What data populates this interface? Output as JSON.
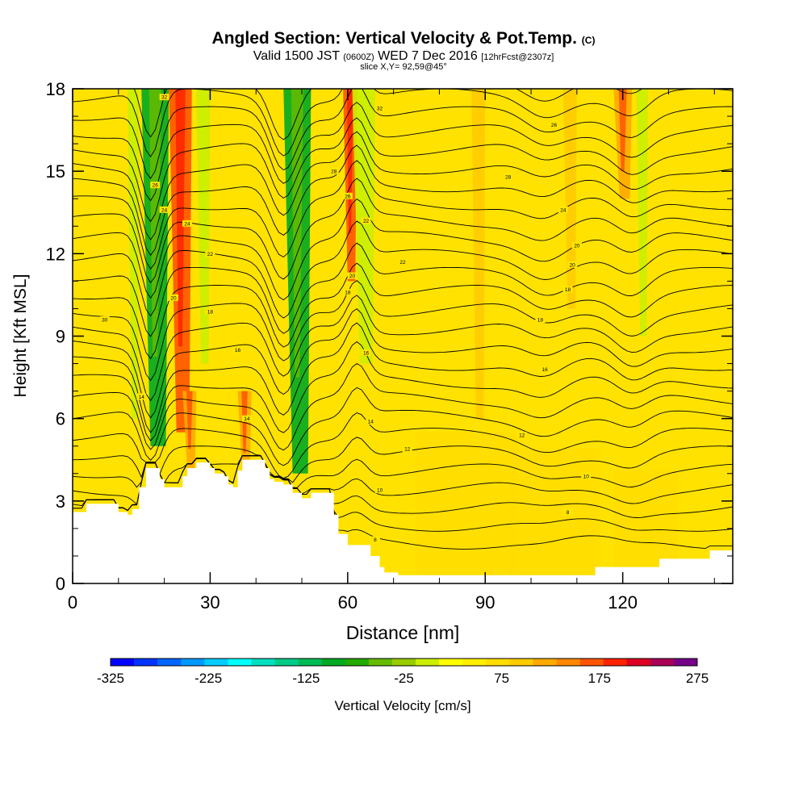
{
  "title": {
    "main": "Angled Section: Vertical Velocity & Pot.Temp.",
    "copyright": "(C)",
    "valid_prefix": "Valid 1500 JST",
    "valid_utc": "(0600Z)",
    "valid_date": "WED 7 Dec 2016",
    "forecast": "[12hrFcst@2307z]",
    "slice": "slice X,Y= 92,59@45°"
  },
  "chart_data": {
    "type": "heatmap",
    "xlabel": "Distance [nm]",
    "ylabel": "Height [Kft MSL]",
    "xlim": [
      0,
      144
    ],
    "ylim": [
      0,
      18
    ],
    "x_ticks": [
      0,
      30,
      60,
      90,
      120
    ],
    "y_ticks": [
      0,
      3,
      6,
      9,
      12,
      15,
      18
    ],
    "colorbar": {
      "label": "Vertical Velocity [cm/s]",
      "min": -325,
      "max": 275,
      "step": 25,
      "tick_labels": [
        "-325",
        "-225",
        "-125",
        "-25",
        "75",
        "175",
        "275"
      ],
      "colors": [
        "#0000ff",
        "#0033ff",
        "#0066ff",
        "#0099ff",
        "#00ccff",
        "#00ffff",
        "#00e0c0",
        "#00cc88",
        "#00bb55",
        "#00aa22",
        "#22aa00",
        "#66bb00",
        "#99cc00",
        "#ccee00",
        "#ffff00",
        "#ffee00",
        "#ffdd00",
        "#ffcc00",
        "#ffaa00",
        "#ff8800",
        "#ff5500",
        "#ff2200",
        "#dd0022",
        "#aa0055",
        "#770088"
      ]
    },
    "updraft_columns_x": [
      22,
      60,
      120
    ],
    "downdraft_columns_x": [
      15,
      46,
      64,
      123
    ],
    "terrain": [
      [
        0,
        2.6
      ],
      [
        3,
        2.9
      ],
      [
        10,
        2.6
      ],
      [
        12,
        2.5
      ],
      [
        13,
        2.7
      ],
      [
        14,
        2.7
      ],
      [
        14.5,
        3.5
      ],
      [
        16,
        4.2
      ],
      [
        19,
        3.8
      ],
      [
        20,
        3.5
      ],
      [
        23,
        3.5
      ],
      [
        24,
        3.9
      ],
      [
        25,
        4.2
      ],
      [
        27,
        4.4
      ],
      [
        30,
        4.2
      ],
      [
        31,
        4.0
      ],
      [
        33,
        3.9
      ],
      [
        34,
        3.6
      ],
      [
        35,
        3.5
      ],
      [
        36,
        4.1
      ],
      [
        37,
        4.5
      ],
      [
        41,
        4.5
      ],
      [
        42,
        4.2
      ],
      [
        43,
        3.8
      ],
      [
        44,
        3.7
      ],
      [
        46,
        3.6
      ],
      [
        48,
        3.3
      ],
      [
        50,
        3.1
      ],
      [
        52,
        3.3
      ],
      [
        56,
        3.3
      ],
      [
        57,
        2.5
      ],
      [
        58,
        1.8
      ],
      [
        60,
        1.4
      ],
      [
        64,
        1.4
      ],
      [
        65,
        1.0
      ],
      [
        67,
        0.6
      ],
      [
        68,
        0.4
      ],
      [
        71,
        0.3
      ],
      [
        113,
        0.3
      ],
      [
        114,
        0.6
      ],
      [
        127,
        0.6
      ],
      [
        128,
        0.9
      ],
      [
        138,
        0.9
      ],
      [
        139,
        1.2
      ],
      [
        144,
        1.2
      ]
    ],
    "theta_contour_labels": [
      {
        "x": 7,
        "y": 9.6,
        "text": "30"
      },
      {
        "x": 20,
        "y": 17.7,
        "text": "32"
      },
      {
        "x": 67,
        "y": 17.3,
        "text": "32"
      },
      {
        "x": 105,
        "y": 16.7,
        "text": "26"
      },
      {
        "x": 18,
        "y": 14.5,
        "text": "26"
      },
      {
        "x": 57,
        "y": 15.0,
        "text": "28"
      },
      {
        "x": 60,
        "y": 14.1,
        "text": "26"
      },
      {
        "x": 95,
        "y": 14.8,
        "text": "28"
      },
      {
        "x": 20,
        "y": 13.6,
        "text": "24"
      },
      {
        "x": 25,
        "y": 13.1,
        "text": "24"
      },
      {
        "x": 107,
        "y": 13.6,
        "text": "24"
      },
      {
        "x": 64,
        "y": 13.2,
        "text": "22"
      },
      {
        "x": 30,
        "y": 12.0,
        "text": "22"
      },
      {
        "x": 72,
        "y": 11.7,
        "text": "22"
      },
      {
        "x": 110,
        "y": 12.3,
        "text": "20"
      },
      {
        "x": 61,
        "y": 11.2,
        "text": "20"
      },
      {
        "x": 109,
        "y": 11.6,
        "text": "20"
      },
      {
        "x": 22,
        "y": 10.4,
        "text": "20"
      },
      {
        "x": 108,
        "y": 10.7,
        "text": "18"
      },
      {
        "x": 60,
        "y": 10.6,
        "text": "18"
      },
      {
        "x": 30,
        "y": 9.9,
        "text": "18"
      },
      {
        "x": 102,
        "y": 9.6,
        "text": "18"
      },
      {
        "x": 36,
        "y": 8.5,
        "text": "16"
      },
      {
        "x": 64,
        "y": 8.4,
        "text": "16"
      },
      {
        "x": 103,
        "y": 7.8,
        "text": "16"
      },
      {
        "x": 15,
        "y": 6.8,
        "text": "14"
      },
      {
        "x": 38,
        "y": 6.0,
        "text": "14"
      },
      {
        "x": 65,
        "y": 5.9,
        "text": "14"
      },
      {
        "x": 98,
        "y": 5.4,
        "text": "12"
      },
      {
        "x": 73,
        "y": 4.9,
        "text": "12"
      },
      {
        "x": 67,
        "y": 3.4,
        "text": "10"
      },
      {
        "x": 112,
        "y": 3.9,
        "text": "10"
      },
      {
        "x": 108,
        "y": 2.6,
        "text": "8"
      },
      {
        "x": 66,
        "y": 1.6,
        "text": "8"
      }
    ]
  }
}
